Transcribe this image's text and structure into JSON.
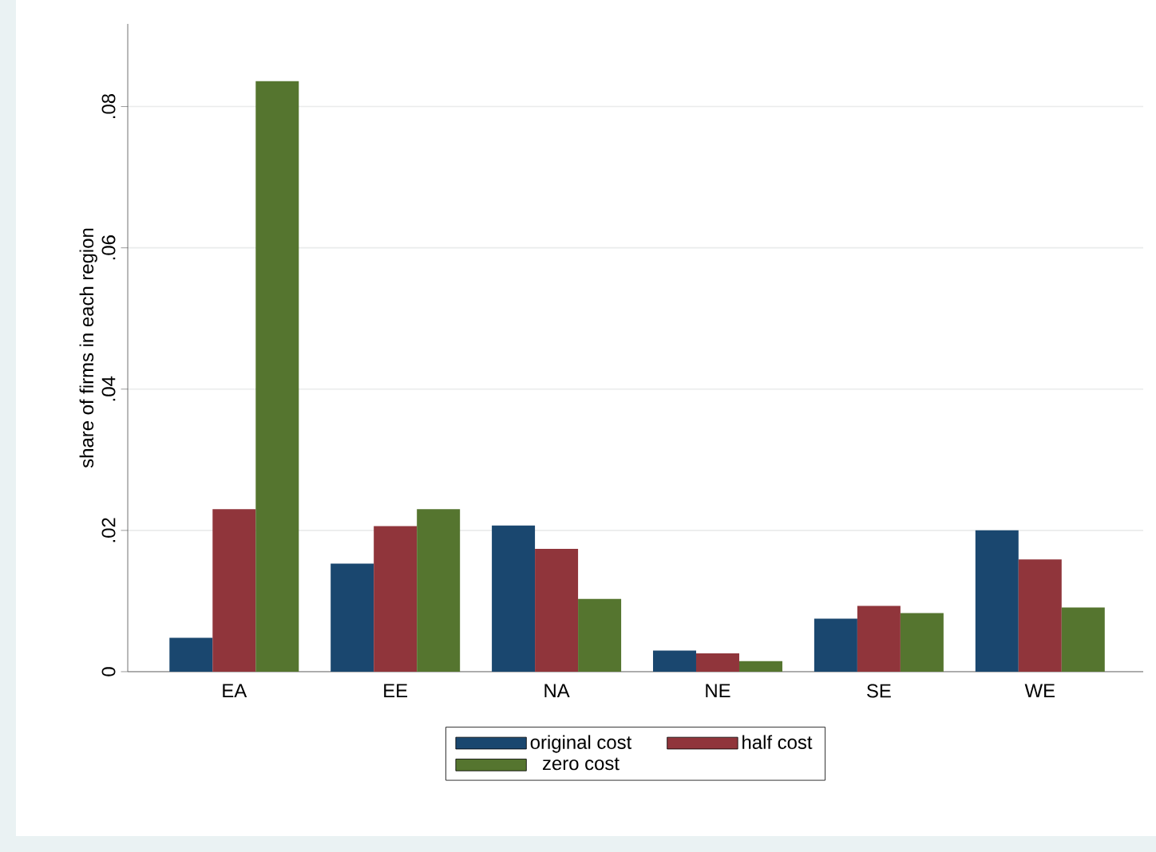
{
  "chart_data": {
    "type": "bar",
    "ylabel": "share of firms in each region",
    "categories": [
      "EA",
      "EE",
      "NA",
      "NE",
      "SE",
      "WE"
    ],
    "series": [
      {
        "name": "original cost",
        "color": "#1a476f",
        "values": [
          0.0048,
          0.0153,
          0.0207,
          0.003,
          0.0075,
          0.02
        ]
      },
      {
        "name": "half cost",
        "color": "#90353b",
        "values": [
          0.023,
          0.0206,
          0.0174,
          0.0026,
          0.0093,
          0.0159
        ]
      },
      {
        "name": "zero cost",
        "color": "#55752f",
        "values": [
          0.0836,
          0.023,
          0.0103,
          0.0015,
          0.0083,
          0.0091
        ]
      }
    ],
    "ylim": [
      0,
      0.0917
    ],
    "yticks": [
      0,
      {
        "value": 0.02,
        "label": ".02"
      },
      {
        "value": 0.04,
        "label": ".04"
      },
      {
        "value": 0.06,
        "label": ".06"
      },
      {
        "value": 0.08,
        "label": ".08"
      }
    ],
    "grid": "y",
    "legend": "bottom"
  }
}
